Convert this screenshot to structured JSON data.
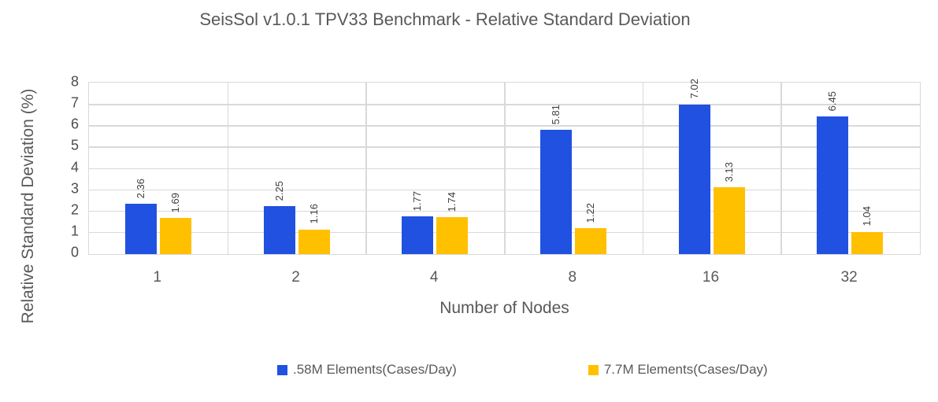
{
  "title": "SeisSol v1.0.1 TPV33 Benchmark - Relative Standard Deviation",
  "chart_data": {
    "type": "bar",
    "title": "SeisSol v1.0.1 TPV33 Benchmark - Relative Standard Deviation",
    "categories": [
      "1",
      "2",
      "4",
      "8",
      "16",
      "32"
    ],
    "series": [
      {
        "name": ".58M Elements(Cases/Day)",
        "color": "#2051E0",
        "values": [
          2.36,
          2.25,
          1.77,
          5.81,
          7.02,
          6.45
        ],
        "labels": [
          "2.36",
          "2.25",
          "1.77",
          "5.81",
          "7.02",
          "6.45"
        ]
      },
      {
        "name": "7.7M Elements(Cases/Day)",
        "color": "#FFC000",
        "values": [
          1.69,
          1.16,
          1.74,
          1.22,
          3.13,
          1.04
        ],
        "labels": [
          "1.69",
          "1.16",
          "1.74",
          "1.22",
          "3.13",
          "1.04"
        ]
      }
    ],
    "xlabel": "Number of Nodes",
    "ylabel": "Relative Standard Deviation (%)",
    "ylim": [
      0,
      8
    ],
    "ytick_step": 1,
    "yticks": [
      "0",
      "1",
      "2",
      "3",
      "4",
      "5",
      "6",
      "7",
      "8"
    ],
    "grid": true,
    "gridline_color": "#D9D9D9",
    "data_label_rotation": "vertical",
    "legend_position": "bottom"
  },
  "colors": {
    "background": "#FFFFFF",
    "title_text": "#595959",
    "axis_text": "#595959",
    "tick_text": "#4D4D4D",
    "data_label_text": "#404040",
    "gridline": "#D9D9D9"
  }
}
